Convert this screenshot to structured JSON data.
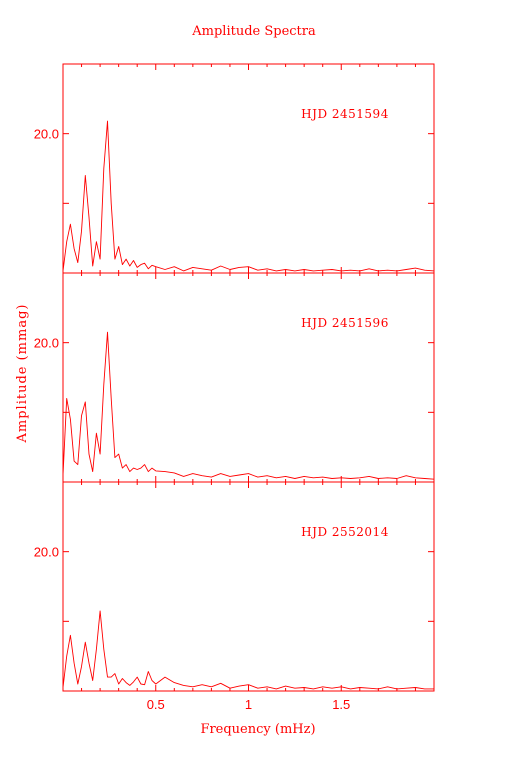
{
  "title": "Amplitude Spectra",
  "xlabel": "Frequency (mHz)",
  "ylabel": "Amplitude (mmag)",
  "colors": {
    "ink": "#ff0000",
    "background": "#ffffff"
  },
  "chart_data": [
    {
      "type": "line",
      "panel": "top",
      "annotation": "HJD 2451594",
      "xlim": [
        0.0,
        2.0
      ],
      "ylim": [
        0,
        30
      ],
      "xticks": [
        0.5,
        1,
        1.5
      ],
      "xtick_labels": [
        "",
        "",
        ""
      ],
      "yticks": [
        10,
        20,
        30
      ],
      "ytick_labels": [
        "",
        "20.0",
        ""
      ],
      "series": [
        {
          "x": [
            0.0,
            0.02,
            0.04,
            0.06,
            0.08,
            0.1,
            0.12,
            0.14,
            0.16,
            0.18,
            0.2,
            0.22,
            0.24,
            0.26,
            0.28,
            0.3,
            0.32,
            0.34,
            0.36,
            0.38,
            0.4,
            0.42,
            0.44,
            0.46,
            0.48,
            0.5,
            0.55,
            0.6,
            0.65,
            0.7,
            0.75,
            0.8,
            0.85,
            0.9,
            0.95,
            1.0,
            1.05,
            1.1,
            1.15,
            1.2,
            1.25,
            1.3,
            1.35,
            1.4,
            1.45,
            1.5,
            1.55,
            1.6,
            1.65,
            1.7,
            1.75,
            1.8,
            1.85,
            1.9,
            1.95,
            2.0
          ],
          "y": [
            0.3,
            4.5,
            7.0,
            3.5,
            1.5,
            6.0,
            14.0,
            8.0,
            1.0,
            4.5,
            2.0,
            15.0,
            21.8,
            10.0,
            2.0,
            3.8,
            1.2,
            2.0,
            1.0,
            1.8,
            0.8,
            1.2,
            1.4,
            0.6,
            1.1,
            0.9,
            0.5,
            0.9,
            0.3,
            0.8,
            0.6,
            0.4,
            1.0,
            0.5,
            0.8,
            0.9,
            0.4,
            0.6,
            0.3,
            0.5,
            0.3,
            0.5,
            0.3,
            0.4,
            0.5,
            0.3,
            0.4,
            0.3,
            0.6,
            0.3,
            0.4,
            0.3,
            0.5,
            0.7,
            0.4,
            0.3
          ]
        }
      ]
    },
    {
      "type": "line",
      "panel": "middle",
      "annotation": "HJD 2451596",
      "xlim": [
        0.0,
        2.0
      ],
      "ylim": [
        0,
        30
      ],
      "xticks": [
        0.5,
        1,
        1.5
      ],
      "xtick_labels": [
        "",
        "",
        ""
      ],
      "yticks": [
        10,
        20,
        30
      ],
      "ytick_labels": [
        "",
        "20.0",
        ""
      ],
      "series": [
        {
          "x": [
            0.0,
            0.02,
            0.04,
            0.06,
            0.08,
            0.1,
            0.12,
            0.14,
            0.16,
            0.18,
            0.2,
            0.22,
            0.24,
            0.26,
            0.28,
            0.3,
            0.32,
            0.34,
            0.36,
            0.38,
            0.4,
            0.42,
            0.44,
            0.46,
            0.48,
            0.5,
            0.55,
            0.6,
            0.65,
            0.7,
            0.75,
            0.8,
            0.85,
            0.9,
            0.95,
            1.0,
            1.05,
            1.1,
            1.15,
            1.2,
            1.25,
            1.3,
            1.35,
            1.4,
            1.45,
            1.5,
            1.55,
            1.6,
            1.65,
            1.7,
            1.75,
            1.8,
            1.85,
            1.9,
            1.95,
            2.0
          ],
          "y": [
            1.0,
            12.0,
            9.0,
            3.0,
            2.5,
            9.5,
            11.5,
            4.0,
            1.5,
            7.0,
            4.0,
            14.0,
            21.5,
            12.0,
            3.5,
            4.0,
            2.0,
            2.5,
            1.5,
            2.0,
            1.8,
            2.0,
            2.5,
            1.5,
            2.0,
            1.6,
            1.5,
            1.3,
            0.8,
            1.2,
            0.9,
            0.7,
            1.2,
            0.8,
            1.0,
            1.2,
            0.7,
            0.9,
            0.6,
            0.8,
            0.5,
            0.8,
            0.6,
            0.7,
            0.5,
            0.6,
            0.5,
            0.6,
            0.8,
            0.5,
            0.6,
            0.5,
            0.9,
            0.6,
            0.5,
            0.4
          ]
        }
      ]
    },
    {
      "type": "line",
      "panel": "bottom",
      "annotation": "HJD 2552014",
      "xlim": [
        0.0,
        2.0
      ],
      "ylim": [
        0,
        30
      ],
      "xticks": [
        0.5,
        1,
        1.5
      ],
      "xtick_labels": [
        "0.5",
        "1",
        "1.5"
      ],
      "yticks": [
        10,
        20,
        30
      ],
      "ytick_labels": [
        "",
        "20.0",
        ""
      ],
      "series": [
        {
          "x": [
            0.0,
            0.02,
            0.04,
            0.06,
            0.08,
            0.1,
            0.12,
            0.14,
            0.16,
            0.18,
            0.2,
            0.22,
            0.24,
            0.26,
            0.28,
            0.3,
            0.32,
            0.34,
            0.36,
            0.38,
            0.4,
            0.42,
            0.44,
            0.46,
            0.48,
            0.5,
            0.55,
            0.6,
            0.65,
            0.7,
            0.75,
            0.8,
            0.85,
            0.9,
            0.95,
            1.0,
            1.05,
            1.1,
            1.15,
            1.2,
            1.25,
            1.3,
            1.35,
            1.4,
            1.45,
            1.5,
            1.55,
            1.6,
            1.65,
            1.7,
            1.75,
            1.8,
            1.85,
            1.9,
            1.95,
            2.0
          ],
          "y": [
            0.5,
            5.0,
            8.0,
            4.0,
            1.0,
            3.5,
            7.0,
            4.0,
            1.5,
            6.0,
            11.5,
            6.0,
            2.0,
            2.0,
            2.5,
            1.0,
            1.8,
            1.2,
            0.8,
            1.3,
            2.0,
            1.0,
            0.9,
            2.8,
            1.5,
            1.0,
            2.0,
            1.2,
            0.8,
            0.6,
            0.9,
            0.6,
            1.1,
            0.4,
            0.7,
            0.9,
            0.4,
            0.6,
            0.3,
            0.7,
            0.4,
            0.5,
            0.3,
            0.6,
            0.4,
            0.6,
            0.3,
            0.5,
            0.4,
            0.3,
            0.6,
            0.3,
            0.4,
            0.5,
            0.3,
            0.3
          ]
        }
      ]
    }
  ]
}
